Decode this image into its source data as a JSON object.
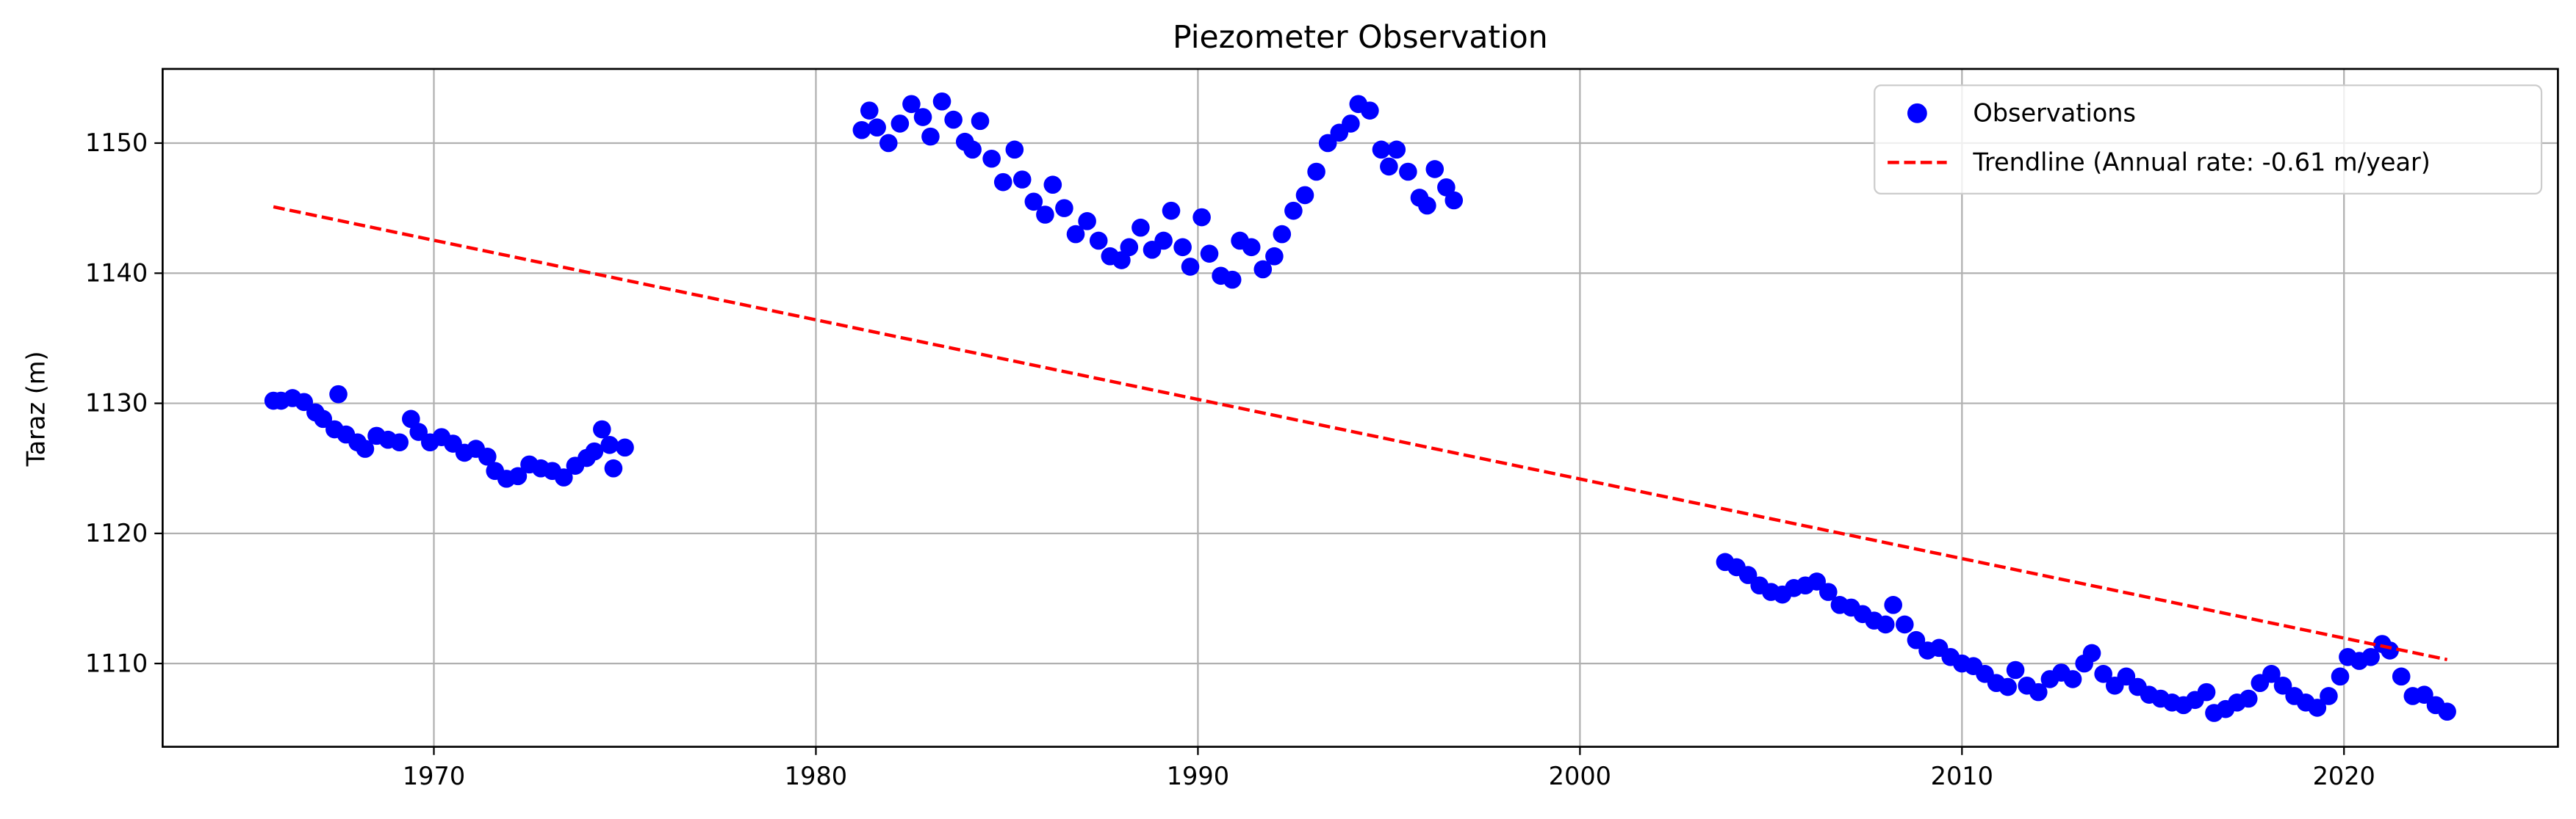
{
  "chart_data": {
    "type": "scatter",
    "title": "Piezometer Observation",
    "y_label": "Taraz (m)",
    "xlim": [
      1962.9,
      2025.6
    ],
    "ylim": [
      1103.6,
      1155.7
    ],
    "xticks": [
      1970,
      1980,
      1990,
      2000,
      2010,
      2020
    ],
    "yticks": [
      1110,
      1120,
      1130,
      1140,
      1150
    ],
    "grid": true,
    "legend": "upper right",
    "series": [
      {
        "name": "Observations",
        "color": "#0000ff",
        "kind": "scatter",
        "x": [
          1965.8,
          1966.0,
          1966.3,
          1966.6,
          1966.9,
          1967.1,
          1967.4,
          1967.5,
          1967.7,
          1968.0,
          1968.2,
          1968.5,
          1968.8,
          1969.1,
          1969.4,
          1969.6,
          1969.9,
          1970.2,
          1970.5,
          1970.8,
          1971.1,
          1971.4,
          1971.6,
          1971.9,
          1972.2,
          1972.5,
          1972.8,
          1973.1,
          1973.4,
          1973.7,
          1974.0,
          1974.2,
          1974.4,
          1974.6,
          1974.7,
          1975.0,
          1981.2,
          1981.4,
          1981.6,
          1981.9,
          1982.2,
          1982.5,
          1982.8,
          1983.0,
          1983.3,
          1983.6,
          1983.9,
          1984.1,
          1984.3,
          1984.6,
          1984.9,
          1985.2,
          1985.4,
          1985.7,
          1986.0,
          1986.2,
          1986.5,
          1986.8,
          1987.1,
          1987.4,
          1987.7,
          1988.0,
          1988.2,
          1988.5,
          1988.8,
          1989.1,
          1989.3,
          1989.6,
          1989.8,
          1990.1,
          1990.3,
          1990.6,
          1990.9,
          1991.1,
          1991.4,
          1991.7,
          1992.0,
          1992.2,
          1992.5,
          1992.8,
          1993.1,
          1993.4,
          1993.7,
          1994.0,
          1994.2,
          1994.5,
          1994.8,
          1995.0,
          1995.2,
          1995.5,
          1995.8,
          1996.0,
          1996.2,
          1996.5,
          1996.7,
          2003.8,
          2004.1,
          2004.4,
          2004.7,
          2005.0,
          2005.3,
          2005.6,
          2005.9,
          2006.2,
          2006.5,
          2006.8,
          2007.1,
          2007.4,
          2007.7,
          2008.0,
          2008.2,
          2008.5,
          2008.8,
          2009.1,
          2009.4,
          2009.7,
          2010.0,
          2010.3,
          2010.6,
          2010.9,
          2011.2,
          2011.4,
          2011.7,
          2012.0,
          2012.3,
          2012.6,
          2012.9,
          2013.2,
          2013.4,
          2013.7,
          2014.0,
          2014.3,
          2014.6,
          2014.9,
          2015.2,
          2015.5,
          2015.8,
          2016.1,
          2016.4,
          2016.6,
          2016.9,
          2017.2,
          2017.5,
          2017.8,
          2018.1,
          2018.4,
          2018.7,
          2019.0,
          2019.3,
          2019.6,
          2019.9,
          2020.1,
          2020.4,
          2020.7,
          2021.0,
          2021.2,
          2021.5,
          2021.8,
          2022.1,
          2022.4,
          2022.7
        ],
        "values": [
          1130.2,
          1130.2,
          1130.4,
          1130.1,
          1129.3,
          1128.8,
          1128.0,
          1130.7,
          1127.6,
          1127.0,
          1126.5,
          1127.5,
          1127.2,
          1127.0,
          1128.8,
          1127.8,
          1127.0,
          1127.4,
          1126.9,
          1126.2,
          1126.5,
          1125.9,
          1124.8,
          1124.2,
          1124.4,
          1125.3,
          1125.0,
          1124.8,
          1124.3,
          1125.2,
          1125.8,
          1126.3,
          1128.0,
          1126.8,
          1125.0,
          1126.6,
          1151.0,
          1152.5,
          1151.2,
          1150.0,
          1151.5,
          1153.0,
          1152.0,
          1150.5,
          1153.2,
          1151.8,
          1150.1,
          1149.5,
          1151.7,
          1148.8,
          1147.0,
          1149.5,
          1147.2,
          1145.5,
          1144.5,
          1146.8,
          1145.0,
          1143.0,
          1144.0,
          1142.5,
          1141.3,
          1141.0,
          1142.0,
          1143.5,
          1141.8,
          1142.5,
          1144.8,
          1142.0,
          1140.5,
          1144.3,
          1141.5,
          1139.8,
          1139.5,
          1142.5,
          1142.0,
          1140.3,
          1141.3,
          1143.0,
          1144.8,
          1146.0,
          1147.8,
          1150.0,
          1150.8,
          1151.5,
          1153.0,
          1152.5,
          1149.5,
          1148.2,
          1149.5,
          1147.8,
          1145.8,
          1145.2,
          1148.0,
          1146.6,
          1145.6,
          1117.8,
          1117.4,
          1116.8,
          1116.0,
          1115.5,
          1115.3,
          1115.8,
          1116.0,
          1116.3,
          1115.5,
          1114.5,
          1114.3,
          1113.8,
          1113.3,
          1113.0,
          1114.5,
          1113.0,
          1111.8,
          1111.0,
          1111.2,
          1110.5,
          1110.0,
          1109.8,
          1109.2,
          1108.5,
          1108.2,
          1109.5,
          1108.3,
          1107.8,
          1108.8,
          1109.3,
          1108.8,
          1110.0,
          1110.8,
          1109.2,
          1108.3,
          1109.0,
          1108.2,
          1107.6,
          1107.3,
          1107.0,
          1106.8,
          1107.2,
          1107.8,
          1106.2,
          1106.5,
          1107.0,
          1107.3,
          1108.5,
          1109.2,
          1108.3,
          1107.5,
          1107.0,
          1106.6,
          1107.5,
          1109.0,
          1110.5,
          1110.2,
          1110.5,
          1111.5,
          1111.0,
          1109.0,
          1107.5,
          1107.6,
          1106.8,
          1106.3
        ]
      },
      {
        "name": "Trendline (Annual rate: -0.61 m/year)",
        "color": "#ff0000",
        "kind": "line",
        "dashed": true,
        "x": [
          1965.8,
          2022.7
        ],
        "values": [
          1145.1,
          1110.3
        ]
      }
    ]
  }
}
